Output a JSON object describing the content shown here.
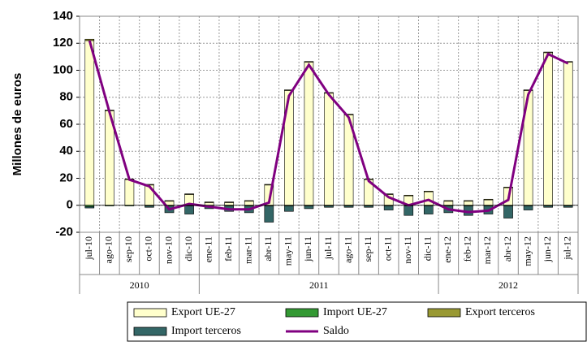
{
  "chart_data": {
    "type": "bar",
    "ylabel": "Millones de euros",
    "categories": [
      "jul-10",
      "ago-10",
      "sep-10",
      "oct-10",
      "nov-10",
      "dic-10",
      "ene-11",
      "feb-11",
      "mar-11",
      "abr-11",
      "may-11",
      "jun-11",
      "jul-11",
      "ago-11",
      "sep-11",
      "oct-11",
      "nov-11",
      "dic-11",
      "ene-12",
      "feb-12",
      "mar-12",
      "abr-12",
      "may-12",
      "jun-12",
      "jul-12"
    ],
    "groups": [
      {
        "label": "2010",
        "count": 6
      },
      {
        "label": "2011",
        "count": 12
      },
      {
        "label": "2012",
        "count": 7
      }
    ],
    "series": [
      {
        "name": "Export UE-27",
        "type": "bar",
        "color": "#ffffcc",
        "values": [
          122,
          70,
          19,
          15,
          3,
          8,
          2,
          2,
          3,
          15,
          85,
          106,
          83,
          67,
          19,
          8,
          7,
          10,
          3,
          3,
          4,
          13,
          85,
          113,
          106
        ]
      },
      {
        "name": "Import UE-27",
        "type": "bar",
        "color": "#339933",
        "values": [
          -1,
          -0.5,
          -0.5,
          -0.5,
          -0.5,
          -0.5,
          -0.5,
          -0.5,
          -0.5,
          -0.5,
          -0.5,
          -0.5,
          -0.5,
          -0.5,
          -0.5,
          -0.5,
          -0.5,
          -0.5,
          -0.5,
          -0.5,
          -0.5,
          -0.5,
          -0.5,
          -0.5,
          -0.5
        ]
      },
      {
        "name": "Export terceros",
        "type": "bar",
        "color": "#999933",
        "values": [
          1,
          0.5,
          0.5,
          0.5,
          0.5,
          0.5,
          0.5,
          0.5,
          0.5,
          0.5,
          0.5,
          0.5,
          0.5,
          0.5,
          0.5,
          0.5,
          0.5,
          0.5,
          0.5,
          0.5,
          0.5,
          0.5,
          0.5,
          0.5,
          0.5
        ]
      },
      {
        "name": "Import terceros",
        "type": "bar",
        "color": "#336666",
        "values": [
          -1,
          0,
          0,
          -1,
          -5,
          -6,
          -2,
          -4,
          -5,
          -12,
          -4,
          -2,
          -1,
          -1,
          -1,
          -3,
          -7,
          -6,
          -5,
          -7,
          -6,
          -9,
          -3,
          -1,
          -1
        ]
      },
      {
        "name": "Saldo",
        "type": "line",
        "color": "#800080",
        "values": [
          122,
          69,
          19,
          14,
          -3,
          1,
          -1,
          -3,
          -3,
          2,
          81,
          104,
          82,
          65,
          18,
          6,
          0,
          4,
          -3,
          -5,
          -4,
          4,
          82,
          112,
          105
        ]
      }
    ],
    "ylim": [
      -20,
      140
    ],
    "yticks": [
      -20,
      0,
      20,
      40,
      60,
      80,
      100,
      120,
      140
    ],
    "grid": true
  }
}
